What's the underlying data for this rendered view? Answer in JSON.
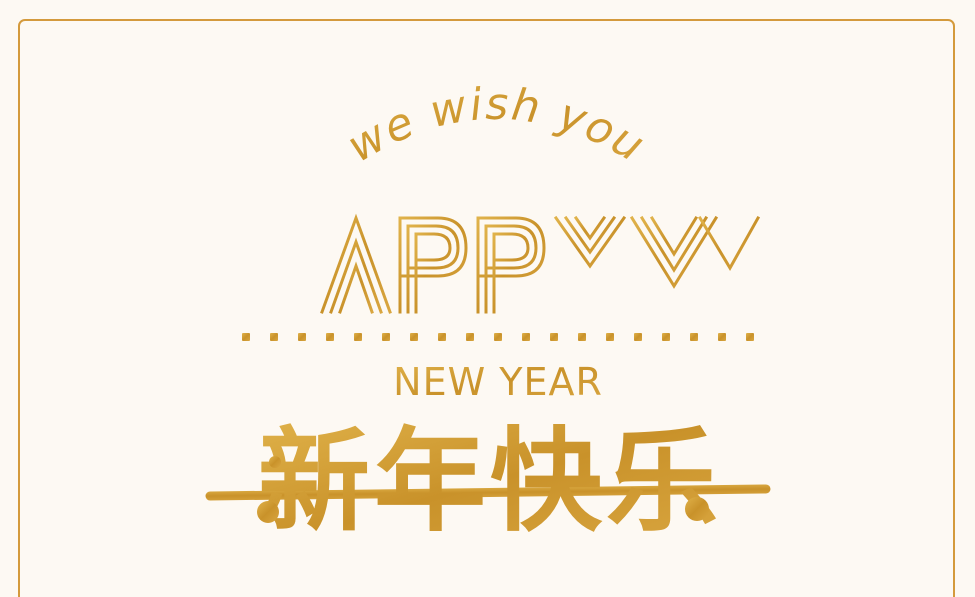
{
  "greeting": {
    "line1": "we wish you",
    "line2": "HAPPY",
    "line3": "NEW YEAR",
    "line4_chinese": "新年快乐"
  },
  "colors": {
    "background": "#fdf9f3",
    "gold": "#d4a13a",
    "gold_dark": "#b8861f",
    "frame": "#d49a3c"
  }
}
